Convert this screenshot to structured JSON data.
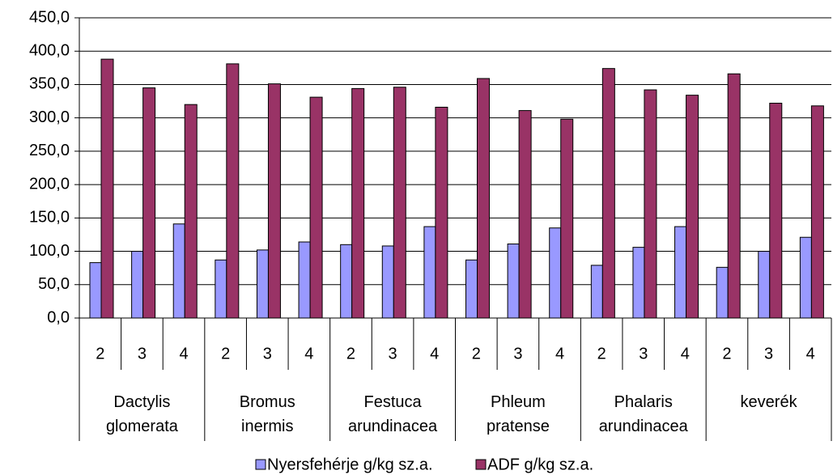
{
  "chart_data": {
    "type": "bar",
    "categories": [
      "2",
      "3",
      "4",
      "2",
      "3",
      "4",
      "2",
      "3",
      "4",
      "2",
      "3",
      "4",
      "2",
      "3",
      "4",
      "2",
      "3",
      "4"
    ],
    "groups": [
      "Dactylis glomerata",
      "Bromus inermis",
      "Festuca arundinacea",
      "Phleum pratense",
      "Phalaris arundinacea",
      "keverék"
    ],
    "series": [
      {
        "name": "Nyersfehérje g/kg sz.a.",
        "color": "#9999ff",
        "values": [
          83,
          100,
          141,
          87,
          102,
          114,
          110,
          108,
          137,
          87,
          111,
          135,
          79,
          106,
          137,
          76,
          100,
          121
        ]
      },
      {
        "name": "ADF g/kg sz.a.",
        "color": "#993366",
        "values": [
          388,
          345,
          320,
          381,
          351,
          331,
          344,
          346,
          316,
          359,
          311,
          298,
          374,
          342,
          334,
          366,
          322,
          318
        ]
      }
    ],
    "ylim": [
      0,
      450
    ],
    "yticks": [
      {
        "value": 0,
        "label": "0,0"
      },
      {
        "value": 50,
        "label": "50,0"
      },
      {
        "value": 100,
        "label": "100,0"
      },
      {
        "value": 150,
        "label": "150,0"
      },
      {
        "value": 200,
        "label": "200,0"
      },
      {
        "value": 250,
        "label": "250,0"
      },
      {
        "value": 300,
        "label": "300,0"
      },
      {
        "value": 350,
        "label": "350,0"
      },
      {
        "value": 400,
        "label": "400,0"
      },
      {
        "value": 450,
        "label": "450,0"
      }
    ],
    "grid": true,
    "legend": "bottom"
  }
}
